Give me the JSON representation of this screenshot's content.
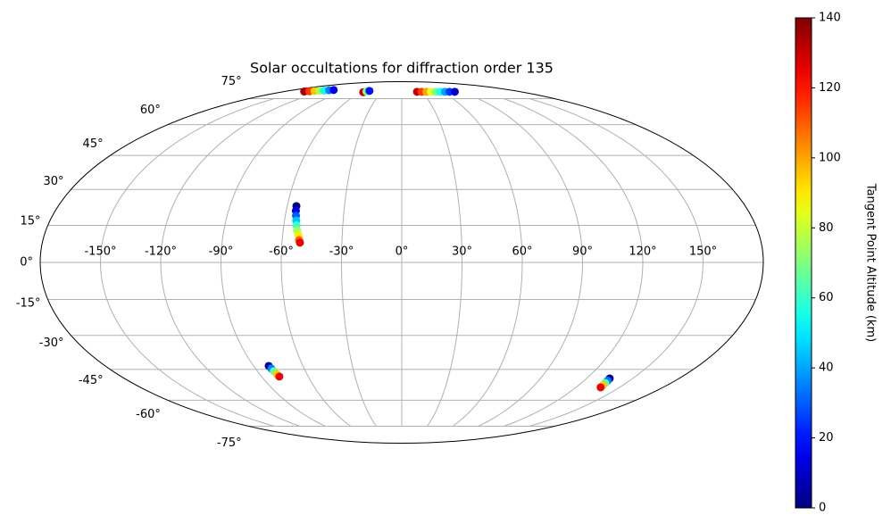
{
  "chart_data": {
    "type": "scatter",
    "projection": "mollweide",
    "title": "Solar occultations for diffraction order 135",
    "x": [
      -149,
      -143,
      -137,
      -131,
      -125,
      -119,
      -113,
      -57,
      -54,
      -51,
      23,
      30,
      37,
      44,
      51,
      58,
      65,
      72,
      80,
      -55.2,
      -55,
      -54.5,
      -54,
      -53.5,
      -53,
      -52,
      -51.5,
      -51,
      -80.8,
      -80.2,
      -79.7,
      -79.1,
      -78.6,
      135,
      135.5,
      136,
      136.5,
      137
    ],
    "y": [
      80,
      80.2,
      80.4,
      80.6,
      80.8,
      81,
      81.2,
      79.5,
      80,
      80.5,
      79.8,
      79.8,
      79.8,
      79.8,
      79.8,
      79.8,
      79.8,
      79.8,
      79.8,
      23,
      21,
      19,
      17,
      15,
      13,
      11,
      9,
      8,
      -43.4,
      -44.6,
      -45.8,
      -47.1,
      -48.3,
      -49.2,
      -50.3,
      -51.4,
      -52.4,
      -53.5
    ],
    "c": [
      135,
      115,
      95,
      75,
      55,
      35,
      15,
      130,
      70,
      20,
      130,
      115,
      100,
      85,
      70,
      55,
      40,
      25,
      10,
      0,
      15,
      30,
      45,
      60,
      75,
      90,
      110,
      125,
      5,
      35,
      65,
      95,
      125,
      5,
      35,
      65,
      95,
      125
    ],
    "xlim": [
      -180,
      180
    ],
    "ylim": [
      -90,
      90
    ],
    "xticks": [
      {
        "value": -150,
        "label": "-150°"
      },
      {
        "value": -120,
        "label": "-120°"
      },
      {
        "value": -90,
        "label": "-90°"
      },
      {
        "value": -60,
        "label": "-60°"
      },
      {
        "value": -30,
        "label": "-30°"
      },
      {
        "value": 0,
        "label": "0°"
      },
      {
        "value": 30,
        "label": "30°"
      },
      {
        "value": 60,
        "label": "60°"
      },
      {
        "value": 90,
        "label": "90°"
      },
      {
        "value": 120,
        "label": "120°"
      },
      {
        "value": 150,
        "label": "150°"
      }
    ],
    "yticks": [
      {
        "value": -75,
        "label": "-75°"
      },
      {
        "value": -60,
        "label": "-60°"
      },
      {
        "value": -45,
        "label": "-45°"
      },
      {
        "value": -30,
        "label": "-30°"
      },
      {
        "value": -15,
        "label": "-15°"
      },
      {
        "value": 0,
        "label": "0°"
      },
      {
        "value": 15,
        "label": "15°"
      },
      {
        "value": 30,
        "label": "30°"
      },
      {
        "value": 45,
        "label": "45°"
      },
      {
        "value": 60,
        "label": "60°"
      },
      {
        "value": 75,
        "label": "75°"
      }
    ],
    "grid": true,
    "colorbar": {
      "label": "Tangent Point Altitude (km)",
      "cmap": "jet",
      "lim": [
        0,
        140
      ],
      "ticks": [
        0,
        20,
        40,
        60,
        80,
        100,
        120,
        140
      ]
    }
  }
}
